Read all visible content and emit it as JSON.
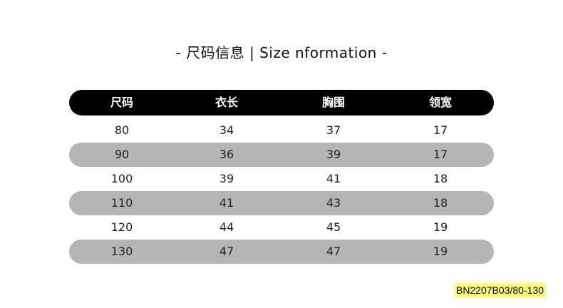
{
  "title": "-  尺码信息 | Size nformation  -",
  "headers": [
    "尺码",
    "衣长",
    "胸围",
    "领宽"
  ],
  "rows": [
    [
      "80",
      "34",
      "37",
      "17"
    ],
    [
      "90",
      "36",
      "39",
      "17"
    ],
    [
      "100",
      "39",
      "41",
      "18"
    ],
    [
      "110",
      "41",
      "43",
      "18"
    ],
    [
      "120",
      "44",
      "45",
      "19"
    ],
    [
      "130",
      "47",
      "47",
      "19"
    ]
  ],
  "product_code": "BN2207B03/80-130",
  "colors": {
    "header_bg": "#000000",
    "stripe": "#b5b5b5",
    "code_bg": "#ffff7a"
  }
}
